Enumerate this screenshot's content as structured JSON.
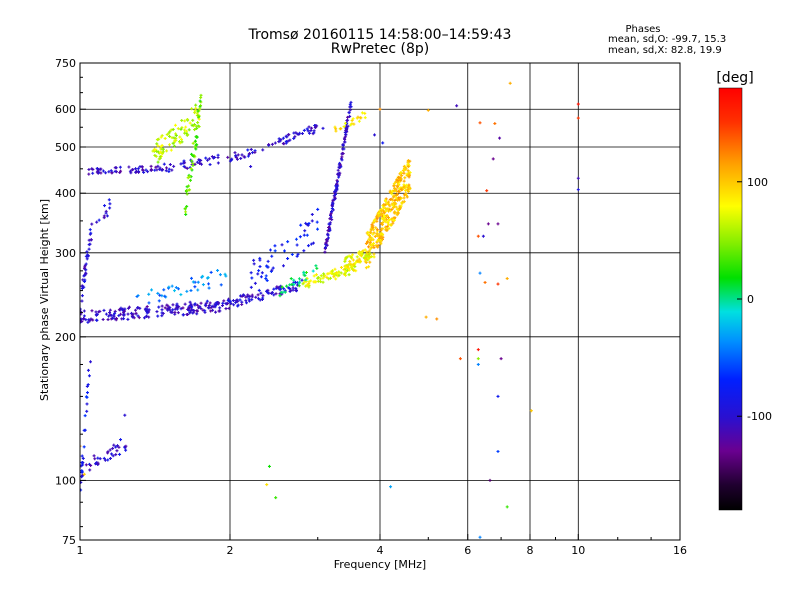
{
  "chart_data": {
    "type": "scatter",
    "title": "Tromsø 20160115 14:58:00–14:59:43",
    "subtitle": "RwPretec (8p)",
    "xlabel": "Frequency [MHz]",
    "ylabel": "Stationary phase Virtual Height [km]",
    "x_scale": "log",
    "y_scale": "log",
    "xlim": [
      1,
      16
    ],
    "ylim": [
      75,
      750
    ],
    "x_ticks": [
      1,
      2,
      4,
      6,
      8,
      10,
      16
    ],
    "x_tick_labels": [
      "1",
      "2",
      "4",
      "6",
      "8",
      "10",
      "16"
    ],
    "x_gridlines": [
      2,
      4,
      6,
      8,
      10
    ],
    "y_ticks": [
      75,
      100,
      200,
      300,
      400,
      500,
      600,
      750
    ],
    "y_tick_labels": [
      "75",
      "100",
      "200",
      "300",
      "400",
      "500",
      "600",
      "750"
    ],
    "y_gridlines": [
      100,
      200,
      300,
      400,
      500,
      600
    ],
    "grid": true,
    "stats": {
      "heading": "Phases",
      "line_o": "mean, sd,O: -99.7, 15.3",
      "line_x": "mean, sd,X: 82.8, 19.9"
    },
    "colorbar": {
      "label": "[deg]",
      "range": [
        -180,
        180
      ],
      "ticks": [
        100,
        0,
        -100
      ],
      "tick_labels": [
        "100",
        "0",
        "-100"
      ]
    },
    "traces": [
      {
        "x0": 1.0,
        "x1": 1.9,
        "h0": 220,
        "h1": 232,
        "phase": -105,
        "n": 190,
        "spread": 0.03
      },
      {
        "x0": 1.9,
        "x1": 2.8,
        "h0": 232,
        "h1": 258,
        "phase": -100,
        "n": 90,
        "spread": 0.025
      },
      {
        "x0": 2.8,
        "x1": 3.6,
        "h0": 258,
        "h1": 280,
        "phase": 75,
        "n": 80,
        "spread": 0.025
      },
      {
        "x0": 3.1,
        "x1": 3.5,
        "h0": 300,
        "h1": 620,
        "phase": -105,
        "n": 130,
        "spread": 0.03
      },
      {
        "x0": 1.04,
        "x1": 1.45,
        "h0": 445,
        "h1": 450,
        "phase": -105,
        "n": 60,
        "spread": 0.015
      },
      {
        "x0": 1.45,
        "x1": 2.1,
        "h0": 450,
        "h1": 480,
        "phase": -100,
        "n": 50,
        "spread": 0.02
      },
      {
        "x0": 2.1,
        "x1": 3.1,
        "h0": 480,
        "h1": 555,
        "phase": -100,
        "n": 55,
        "spread": 0.02
      },
      {
        "x0": 3.2,
        "x1": 3.8,
        "h0": 540,
        "h1": 590,
        "phase": 90,
        "n": 20,
        "spread": 0.02
      },
      {
        "x0": 3.75,
        "x1": 4.6,
        "h0": 300,
        "h1": 440,
        "phase": 100,
        "n": 320,
        "spread": 0.09
      },
      {
        "x0": 3.4,
        "x1": 3.85,
        "h0": 285,
        "h1": 300,
        "phase": 80,
        "n": 60,
        "spread": 0.03
      },
      {
        "x0": 1.4,
        "x1": 1.75,
        "h0": 480,
        "h1": 590,
        "phase": 60,
        "n": 90,
        "spread": 0.06
      },
      {
        "x0": 1.62,
        "x1": 1.75,
        "h0": 360,
        "h1": 620,
        "phase": 40,
        "n": 55,
        "spread": 0.06
      },
      {
        "x0": 1.0,
        "x1": 1.05,
        "h0": 230,
        "h1": 330,
        "phase": -100,
        "n": 35,
        "spread": 0.04
      },
      {
        "x0": 1.0,
        "x1": 1.25,
        "h0": 105,
        "h1": 120,
        "phase": -100,
        "n": 40,
        "spread": 0.04
      },
      {
        "x0": 1.0,
        "x1": 1.05,
        "h0": 95,
        "h1": 185,
        "phase": -80,
        "n": 25,
        "spread": 0.05
      },
      {
        "x0": 1.05,
        "x1": 1.15,
        "h0": 330,
        "h1": 380,
        "phase": -100,
        "n": 15,
        "spread": 0.04
      },
      {
        "x0": 1.3,
        "x1": 2.0,
        "h0": 240,
        "h1": 270,
        "phase": -40,
        "n": 40,
        "spread": 0.04
      },
      {
        "x0": 2.2,
        "x1": 3.0,
        "h0": 265,
        "h1": 345,
        "phase": -80,
        "n": 55,
        "spread": 0.08
      },
      {
        "x0": 2.5,
        "x1": 3.0,
        "h0": 250,
        "h1": 275,
        "phase": 10,
        "n": 25,
        "spread": 0.03
      }
    ],
    "points": [
      {
        "x": 1.23,
        "y": 137,
        "phase": -100
      },
      {
        "x": 2.4,
        "y": 107,
        "phase": 20
      },
      {
        "x": 2.37,
        "y": 98,
        "phase": 90
      },
      {
        "x": 2.47,
        "y": 92,
        "phase": 30
      },
      {
        "x": 4.2,
        "y": 97,
        "phase": -30
      },
      {
        "x": 4.95,
        "y": 220,
        "phase": 110
      },
      {
        "x": 5.2,
        "y": 218,
        "phase": 120
      },
      {
        "x": 5.8,
        "y": 180,
        "phase": 140
      },
      {
        "x": 6.3,
        "y": 188,
        "phase": 170
      },
      {
        "x": 6.3,
        "y": 180,
        "phase": 50
      },
      {
        "x": 6.3,
        "y": 175,
        "phase": -40
      },
      {
        "x": 6.35,
        "y": 272,
        "phase": -40
      },
      {
        "x": 6.5,
        "y": 260,
        "phase": 130
      },
      {
        "x": 6.3,
        "y": 325,
        "phase": 140
      },
      {
        "x": 6.45,
        "y": 325,
        "phase": -100
      },
      {
        "x": 6.6,
        "y": 345,
        "phase": -130
      },
      {
        "x": 6.55,
        "y": 405,
        "phase": 150
      },
      {
        "x": 6.9,
        "y": 345,
        "phase": -130
      },
      {
        "x": 6.9,
        "y": 258,
        "phase": 150
      },
      {
        "x": 7.2,
        "y": 265,
        "phase": 110
      },
      {
        "x": 7.0,
        "y": 180,
        "phase": -130
      },
      {
        "x": 6.9,
        "y": 150,
        "phase": -80
      },
      {
        "x": 6.9,
        "y": 115,
        "phase": -60
      },
      {
        "x": 6.65,
        "y": 100,
        "phase": -140
      },
      {
        "x": 7.2,
        "y": 88,
        "phase": 30
      },
      {
        "x": 6.35,
        "y": 76,
        "phase": -40
      },
      {
        "x": 6.35,
        "y": 562,
        "phase": 140
      },
      {
        "x": 6.8,
        "y": 560,
        "phase": 130
      },
      {
        "x": 6.75,
        "y": 472,
        "phase": -130
      },
      {
        "x": 6.95,
        "y": 522,
        "phase": -120
      },
      {
        "x": 7.3,
        "y": 680,
        "phase": 110
      },
      {
        "x": 8.05,
        "y": 140,
        "phase": 100
      },
      {
        "x": 10.0,
        "y": 575,
        "phase": 150
      },
      {
        "x": 10.0,
        "y": 615,
        "phase": 170
      },
      {
        "x": 10.0,
        "y": 430,
        "phase": -110
      },
      {
        "x": 10.0,
        "y": 407,
        "phase": -90
      },
      {
        "x": 5.0,
        "y": 597,
        "phase": 110
      },
      {
        "x": 5.7,
        "y": 610,
        "phase": -110
      },
      {
        "x": 4.0,
        "y": 600,
        "phase": 120
      },
      {
        "x": 3.9,
        "y": 530,
        "phase": -100
      },
      {
        "x": 4.05,
        "y": 510,
        "phase": -80
      },
      {
        "x": 1.0,
        "y": 118,
        "phase": 120
      },
      {
        "x": 1.02,
        "y": 103,
        "phase": 100
      },
      {
        "x": 2.2,
        "y": 455,
        "phase": -100
      },
      {
        "x": 2.6,
        "y": 525,
        "phase": -100
      }
    ]
  }
}
